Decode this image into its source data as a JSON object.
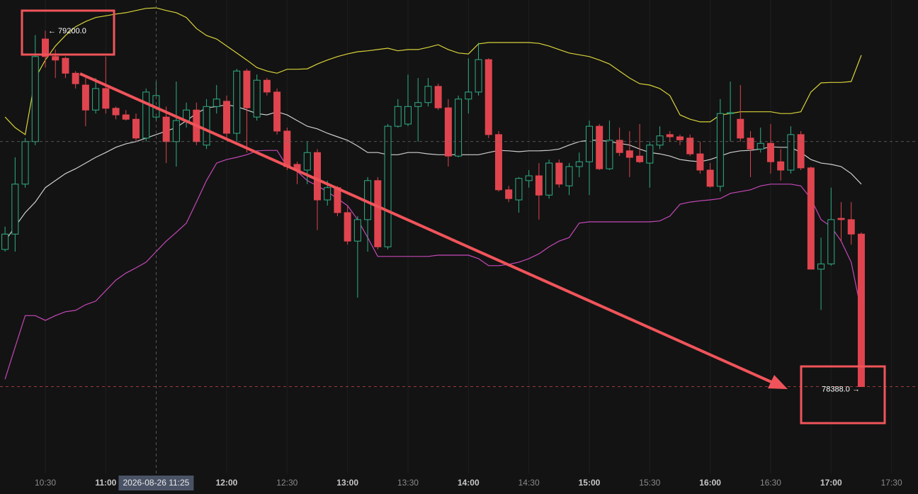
{
  "chart_data": {
    "type": "candlestick",
    "x": [
      "10:10",
      "10:15",
      "10:20",
      "10:25",
      "10:30",
      "10:35",
      "10:40",
      "10:45",
      "10:50",
      "10:55",
      "11:00",
      "11:05",
      "11:10",
      "11:15",
      "11:20",
      "11:25",
      "11:30",
      "11:35",
      "11:40",
      "11:45",
      "11:50",
      "11:55",
      "12:00",
      "12:05",
      "12:10",
      "12:15",
      "12:20",
      "12:25",
      "12:30",
      "12:35",
      "12:40",
      "12:45",
      "12:50",
      "12:55",
      "13:00",
      "13:05",
      "13:10",
      "13:15",
      "13:20",
      "13:25",
      "13:30",
      "13:35",
      "13:40",
      "13:45",
      "13:50",
      "13:55",
      "14:00",
      "14:05",
      "14:10",
      "14:15",
      "14:20",
      "14:25",
      "14:30",
      "14:35",
      "14:40",
      "14:45",
      "14:50",
      "14:55",
      "15:00",
      "15:05",
      "15:10",
      "15:15",
      "15:20",
      "15:25",
      "15:30",
      "15:35",
      "15:40",
      "15:45",
      "15:50",
      "15:55",
      "16:00",
      "16:05",
      "16:10",
      "16:15",
      "16:20",
      "16:25",
      "16:30",
      "16:35",
      "16:40",
      "16:45",
      "16:50",
      "16:55",
      "17:00",
      "17:05",
      "17:10",
      "17:15"
    ],
    "open": [
      78701,
      78736,
      78850,
      78947,
      79181,
      79141,
      79137,
      79103,
      79076,
      79019,
      79068,
      79023,
      79008,
      78998,
      78955,
      79003,
      79003,
      78947,
      78995,
      79019,
      78939,
      79027,
      79039,
      78966,
      79108,
      79003,
      79087,
      79060,
      78971,
      78895,
      78882,
      78922,
      78814,
      78842,
      78785,
      78720,
      78769,
      78858,
      78707,
      78982,
      78987,
      79027,
      79036,
      79073,
      79024,
      78914,
      79044,
      79060,
      79134,
      78963,
      78837,
      78814,
      78858,
      78869,
      78825,
      78898,
      78846,
      78890,
      78901,
      78982,
      78885,
      78950,
      78926,
      78914,
      78898,
      78939,
      78963,
      78958,
      78955,
      78919,
      78882,
      78845,
      79011,
      78998,
      78955,
      78930,
      78943,
      78901,
      78882,
      78963,
      78887,
      78656,
      78668,
      78772,
      78769,
      78736
    ],
    "high": [
      78753,
      78911,
      78955,
      79190,
      79200,
      79157,
      79141,
      79108,
      79092,
      79092,
      79141,
      79027,
      79019,
      79011,
      79068,
      79084,
      79027,
      79084,
      79036,
      79036,
      79044,
      79076,
      79052,
      79113,
      79113,
      79100,
      79092,
      79068,
      78979,
      78901,
      78947,
      78930,
      78858,
      78846,
      78801,
      78777,
      78866,
      78866,
      78987,
      79044,
      79100,
      79092,
      79092,
      79079,
      79044,
      79052,
      79137,
      79173,
      79137,
      78971,
      78846,
      78866,
      78882,
      78898,
      78906,
      78906,
      78898,
      78922,
      78995,
      78987,
      78995,
      78979,
      78971,
      78987,
      78947,
      78982,
      78971,
      78963,
      78963,
      78947,
      78898,
      79044,
      79084,
      79076,
      78971,
      78979,
      78987,
      78930,
      78982,
      78971,
      78890,
      78728,
      78842,
      78809,
      78809,
      78740
    ],
    "low": [
      78696,
      78696,
      78842,
      78939,
      79116,
      79092,
      79092,
      79068,
      78982,
      79011,
      79011,
      78998,
      78995,
      78947,
      78947,
      78995,
      78898,
      78890,
      78979,
      78939,
      78930,
      79011,
      78955,
      78947,
      78922,
      78995,
      79052,
      78963,
      78882,
      78850,
      78850,
      78745,
      78801,
      78777,
      78712,
      78591,
      78696,
      78701,
      78701,
      78979,
      78982,
      78947,
      79027,
      79019,
      78890,
      78911,
      79011,
      79052,
      78955,
      78833,
      78809,
      78785,
      78842,
      78769,
      78817,
      78842,
      78825,
      78866,
      78825,
      78882,
      78882,
      78914,
      78866,
      78898,
      78842,
      78930,
      78947,
      78939,
      78914,
      78874,
      78842,
      78833,
      78947,
      78947,
      78866,
      78922,
      78874,
      78858,
      78874,
      78882,
      78656,
      78563,
      78664,
      78720,
      78712,
      78388
    ],
    "close": [
      78736,
      78850,
      78947,
      79141,
      79141,
      79133,
      79103,
      79079,
      79019,
      79068,
      79023,
      79008,
      78998,
      78955,
      79060,
      79052,
      78947,
      78995,
      79019,
      78947,
      79027,
      79044,
      78966,
      79108,
      79024,
      79087,
      79060,
      78971,
      78890,
      78882,
      78922,
      78814,
      78842,
      78785,
      78720,
      78769,
      78858,
      78707,
      78982,
      79027,
      79027,
      79036,
      79073,
      79024,
      78914,
      79044,
      79060,
      79134,
      78963,
      78837,
      78817,
      78863,
      78869,
      78825,
      78898,
      78850,
      78890,
      78901,
      78982,
      78885,
      78950,
      78922,
      78911,
      78901,
      78939,
      78960,
      78958,
      78951,
      78919,
      78882,
      78845,
      79011,
      79013,
      78955,
      78930,
      78943,
      78901,
      78882,
      78963,
      78887,
      78656,
      78668,
      78769,
      78769,
      78736,
      78388
    ],
    "up_color": "#2fae86",
    "down_color": "#e0454f",
    "bands": [
      {
        "color": "#d8d23a",
        "values": [
          79003,
          78979,
          78963,
          79092,
          79133,
          79165,
          79189,
          79209,
          79221,
          79230,
          79234,
          79238,
          79241,
          79246,
          79251,
          79252,
          79246,
          79241,
          79230,
          79205,
          79189,
          79181,
          79165,
          79149,
          79133,
          79116,
          79108,
          79103,
          79112,
          79112,
          79113,
          79124,
          79133,
          79141,
          79147,
          79152,
          79154,
          79157,
          79160,
          79154,
          79157,
          79157,
          79162,
          79168,
          79157,
          79149,
          79147,
          79170,
          79173,
          79173,
          79173,
          79173,
          79173,
          79171,
          79165,
          79157,
          79149,
          79145,
          79141,
          79133,
          79124,
          79108,
          79092,
          79079,
          79076,
          79068,
          79052,
          79008,
          78998,
          78992,
          78992,
          79008,
          79011,
          79015,
          79015,
          79015,
          79015,
          79011,
          79011,
          79015,
          79060,
          79081,
          79082,
          79082,
          79084,
          79144
        ]
      },
      {
        "color": "#cfcfcf",
        "values": [
          78720,
          78753,
          78785,
          78809,
          78842,
          78858,
          78874,
          78885,
          78898,
          78911,
          78922,
          78934,
          78942,
          78947,
          78955,
          78963,
          78971,
          78979,
          78995,
          79011,
          79024,
          79027,
          79031,
          79027,
          79019,
          79011,
          79008,
          79015,
          79008,
          78995,
          78982,
          78976,
          78966,
          78958,
          78950,
          78937,
          78922,
          78922,
          78917,
          78917,
          78922,
          78922,
          78919,
          78917,
          78917,
          78917,
          78917,
          78917,
          78922,
          78927,
          78926,
          78924,
          78926,
          78926,
          78927,
          78930,
          78939,
          78947,
          78950,
          78950,
          78947,
          78943,
          78939,
          78930,
          78922,
          78919,
          78914,
          78906,
          78903,
          78901,
          78906,
          78914,
          78922,
          78926,
          78927,
          78930,
          78935,
          78934,
          78934,
          78922,
          78906,
          78898,
          78895,
          78890,
          78874,
          78850
        ]
      },
      {
        "color": "#c548b8",
        "values": [
          78405,
          78478,
          78550,
          78550,
          78539,
          78550,
          78559,
          78562,
          78575,
          78583,
          78607,
          78631,
          78647,
          78659,
          78672,
          78696,
          78720,
          78740,
          78761,
          78809,
          78858,
          78898,
          78906,
          78911,
          78917,
          78926,
          78927,
          78927,
          78890,
          78879,
          78858,
          78846,
          78833,
          78817,
          78801,
          78769,
          78728,
          78685,
          78685,
          78685,
          78685,
          78685,
          78685,
          78688,
          78688,
          78688,
          78688,
          78680,
          78664,
          78664,
          78667,
          78672,
          78680,
          78691,
          78707,
          78720,
          78728,
          78761,
          78764,
          78764,
          78764,
          78764,
          78764,
          78764,
          78764,
          78766,
          78777,
          78804,
          78809,
          78812,
          78814,
          78817,
          78829,
          78833,
          78837,
          78846,
          78850,
          78850,
          78850,
          78846,
          78817,
          78769,
          78753,
          78720,
          78672,
          78559
        ]
      }
    ],
    "ylim": [
      78190,
      79270
    ],
    "xticks": [
      "10:30",
      "11:00",
      "12:00",
      "12:30",
      "13:00",
      "13:30",
      "14:00",
      "14:30",
      "15:00",
      "15:30",
      "16:00",
      "16:30",
      "17:00",
      "17:30"
    ],
    "grid": true,
    "crosshair": {
      "x": "11:25",
      "y": 78947,
      "label": "2026-08-26 11:25"
    },
    "annotations": [
      {
        "x": "10:30",
        "value": 79200,
        "label": "← 79200.0"
      },
      {
        "x": "17:15",
        "value": 78388,
        "label": "78388.0 →"
      }
    ]
  }
}
